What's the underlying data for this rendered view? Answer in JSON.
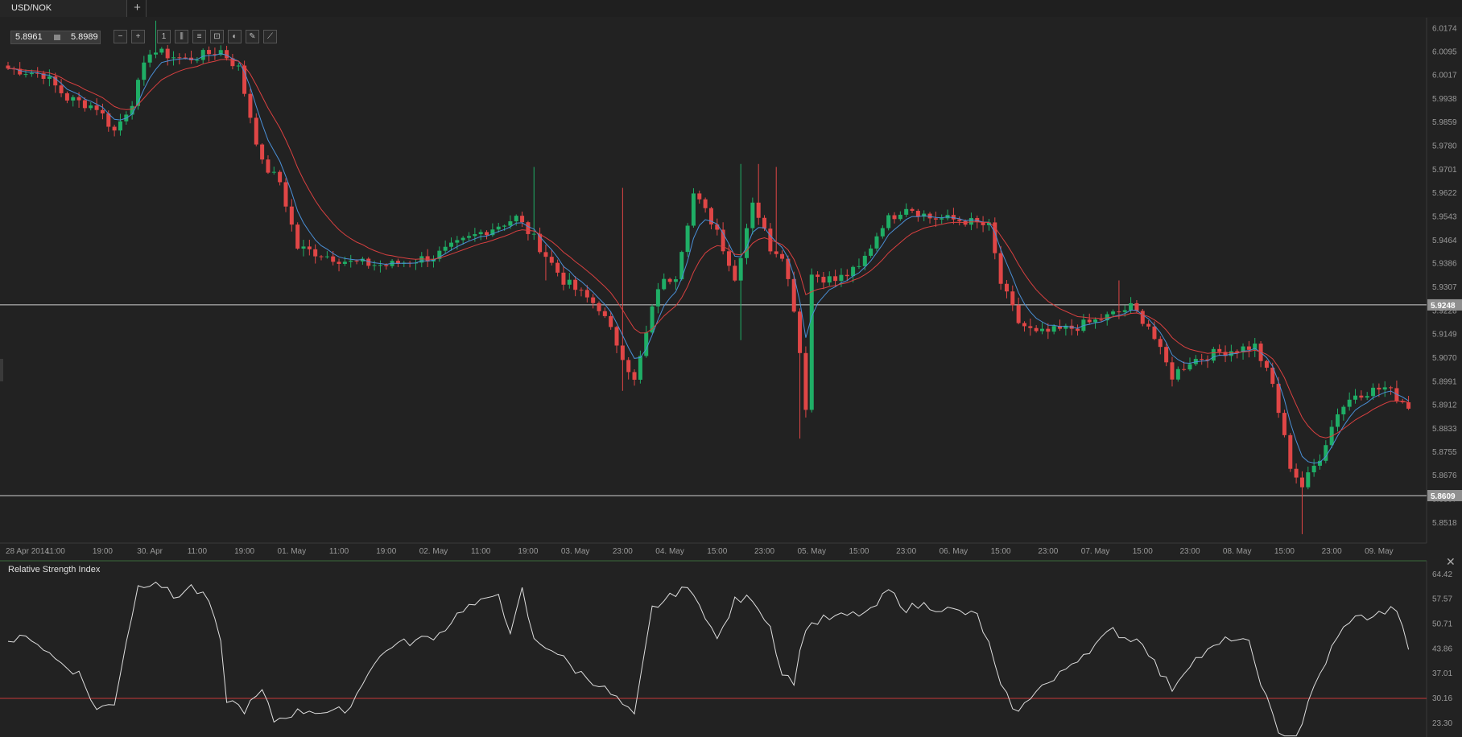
{
  "window": {
    "tab_title": "USD/NOK",
    "add_tab_label": "+"
  },
  "quote": {
    "bid": "5.8961",
    "ask": "5.8989"
  },
  "toolbar": {
    "tools": [
      {
        "name": "zoom-out-icon",
        "glyph": "−"
      },
      {
        "name": "zoom-in-icon",
        "glyph": "+"
      },
      {
        "name": "timeframe-icon",
        "glyph": "1"
      },
      {
        "name": "chart-type-icon",
        "glyph": "⫼"
      },
      {
        "name": "indicators-icon",
        "glyph": "≡"
      },
      {
        "name": "drawing-tools-icon",
        "glyph": "⊡"
      },
      {
        "name": "objects-icon",
        "glyph": "◐"
      },
      {
        "name": "edit-icon",
        "glyph": "✎"
      },
      {
        "name": "draw-line-icon",
        "glyph": "⟋"
      }
    ]
  },
  "colors": {
    "up": "#1fae66",
    "down": "#e04646",
    "ma_fast": "#4a8fd6",
    "ma_slow": "#d94040",
    "rsi_line": "#dedede",
    "rsi_level": "#c83a3a"
  },
  "chart_data": [
    {
      "type": "candlestick",
      "symbol": "USD/NOK",
      "ylim": [
        5.845,
        6.021
      ],
      "y_ticks": [
        "6.0174",
        "6.0095",
        "6.0017",
        "5.9938",
        "5.9859",
        "5.9780",
        "5.9701",
        "5.9622",
        "5.9543",
        "5.9464",
        "5.9386",
        "5.9307",
        "5.9228",
        "5.9149",
        "5.9070",
        "5.8991",
        "5.8912",
        "5.8833",
        "5.8755",
        "5.8676",
        "5.8597",
        "5.8518"
      ],
      "horizontal_lines": [
        {
          "value": 5.9248,
          "label": "5.9248"
        },
        {
          "value": 5.8609,
          "label": "5.8609"
        }
      ],
      "x_labels": [
        {
          "i": 0,
          "label": "28 Apr 2014"
        },
        {
          "i": 8,
          "label": "11:00"
        },
        {
          "i": 16,
          "label": "19:00"
        },
        {
          "i": 24,
          "label": "30. Apr"
        },
        {
          "i": 32,
          "label": "11:00"
        },
        {
          "i": 40,
          "label": "19:00"
        },
        {
          "i": 48,
          "label": "01. May"
        },
        {
          "i": 56,
          "label": "11:00"
        },
        {
          "i": 64,
          "label": "19:00"
        },
        {
          "i": 72,
          "label": "02. May"
        },
        {
          "i": 80,
          "label": "11:00"
        },
        {
          "i": 88,
          "label": "19:00"
        },
        {
          "i": 96,
          "label": "03. May"
        },
        {
          "i": 104,
          "label": "23:00"
        },
        {
          "i": 112,
          "label": "04. May"
        },
        {
          "i": 120,
          "label": "15:00"
        },
        {
          "i": 128,
          "label": "23:00"
        },
        {
          "i": 136,
          "label": "05. May"
        },
        {
          "i": 144,
          "label": "15:00"
        },
        {
          "i": 152,
          "label": "23:00"
        },
        {
          "i": 160,
          "label": "06. May"
        },
        {
          "i": 168,
          "label": "15:00"
        },
        {
          "i": 176,
          "label": "23:00"
        },
        {
          "i": 184,
          "label": "07. May"
        },
        {
          "i": 192,
          "label": "15:00"
        },
        {
          "i": 200,
          "label": "23:00"
        },
        {
          "i": 208,
          "label": "08. May"
        },
        {
          "i": 216,
          "label": "15:00"
        },
        {
          "i": 224,
          "label": "23:00"
        },
        {
          "i": 232,
          "label": "09. May"
        }
      ],
      "anchors": [
        [
          0,
          6.004
        ],
        [
          6,
          6.002
        ],
        [
          10,
          5.994
        ],
        [
          15,
          5.991
        ],
        [
          18,
          5.983
        ],
        [
          21,
          5.993
        ],
        [
          24,
          6.01
        ],
        [
          30,
          6.007
        ],
        [
          36,
          6.01
        ],
        [
          39,
          6.004
        ],
        [
          43,
          5.972
        ],
        [
          46,
          5.966
        ],
        [
          49,
          5.944
        ],
        [
          58,
          5.939
        ],
        [
          64,
          5.938
        ],
        [
          72,
          5.941
        ],
        [
          80,
          5.949
        ],
        [
          86,
          5.954
        ],
        [
          89,
          5.947
        ],
        [
          94,
          5.933
        ],
        [
          100,
          5.924
        ],
        [
          104,
          5.908
        ],
        [
          106,
          5.899
        ],
        [
          110,
          5.931
        ],
        [
          113,
          5.935
        ],
        [
          116,
          5.962
        ],
        [
          120,
          5.95
        ],
        [
          123,
          5.933
        ],
        [
          126,
          5.96
        ],
        [
          129,
          5.944
        ],
        [
          131,
          5.942
        ],
        [
          133,
          5.924
        ],
        [
          134,
          5.909
        ],
        [
          135,
          5.891
        ],
        [
          136,
          5.935
        ],
        [
          140,
          5.933
        ],
        [
          144,
          5.937
        ],
        [
          148,
          5.952
        ],
        [
          152,
          5.958
        ],
        [
          156,
          5.954
        ],
        [
          162,
          5.953
        ],
        [
          166,
          5.951
        ],
        [
          168,
          5.932
        ],
        [
          171,
          5.919
        ],
        [
          174,
          5.915
        ],
        [
          180,
          5.917
        ],
        [
          185,
          5.92
        ],
        [
          190,
          5.924
        ],
        [
          193,
          5.918
        ],
        [
          195,
          5.909
        ],
        [
          197,
          5.901
        ],
        [
          200,
          5.906
        ],
        [
          205,
          5.909
        ],
        [
          211,
          5.911
        ],
        [
          214,
          5.898
        ],
        [
          217,
          5.871
        ],
        [
          219,
          5.864
        ],
        [
          222,
          5.874
        ],
        [
          225,
          5.889
        ],
        [
          228,
          5.895
        ],
        [
          233,
          5.897
        ],
        [
          235,
          5.894
        ],
        [
          237,
          5.891
        ]
      ],
      "spikes": [
        [
          25,
          6.02,
          null
        ],
        [
          89,
          5.971,
          null
        ],
        [
          91,
          null,
          5.933
        ],
        [
          104,
          5.964,
          5.896
        ],
        [
          124,
          5.972,
          5.913
        ],
        [
          127,
          5.972,
          null
        ],
        [
          130,
          5.971,
          null
        ],
        [
          134,
          null,
          5.88
        ],
        [
          188,
          5.933,
          null
        ],
        [
          219,
          null,
          5.848
        ]
      ],
      "indicators": [
        {
          "name": "fast-ma",
          "period": 5
        },
        {
          "name": "slow-ma",
          "period": 12
        }
      ]
    },
    {
      "type": "line",
      "title": "Relative Strength Index",
      "ylim": [
        19.5,
        67.5
      ],
      "y_ticks": [
        "64.42",
        "57.57",
        "50.71",
        "43.86",
        "37.01",
        "30.16",
        "23.30"
      ],
      "level": 30.16,
      "anchors": [
        [
          0,
          46
        ],
        [
          4,
          47
        ],
        [
          8,
          41
        ],
        [
          12,
          37
        ],
        [
          15,
          27
        ],
        [
          18,
          29
        ],
        [
          20,
          46
        ],
        [
          22,
          61
        ],
        [
          25,
          63
        ],
        [
          28,
          58
        ],
        [
          31,
          61
        ],
        [
          34,
          57
        ],
        [
          36,
          45
        ],
        [
          37,
          30
        ],
        [
          40,
          27
        ],
        [
          43,
          32
        ],
        [
          45,
          24
        ],
        [
          48,
          26
        ],
        [
          51,
          27
        ],
        [
          55,
          26
        ],
        [
          58,
          28
        ],
        [
          61,
          38
        ],
        [
          65,
          45
        ],
        [
          69,
          46
        ],
        [
          73,
          48
        ],
        [
          77,
          55
        ],
        [
          81,
          57
        ],
        [
          83,
          60
        ],
        [
          85,
          47
        ],
        [
          87,
          60
        ],
        [
          89,
          46
        ],
        [
          92,
          44
        ],
        [
          96,
          38
        ],
        [
          100,
          34
        ],
        [
          103,
          30
        ],
        [
          106,
          25
        ],
        [
          109,
          55
        ],
        [
          112,
          58
        ],
        [
          114,
          61
        ],
        [
          117,
          57
        ],
        [
          120,
          46
        ],
        [
          123,
          57
        ],
        [
          126,
          58
        ],
        [
          129,
          50
        ],
        [
          131,
          37
        ],
        [
          133,
          35
        ],
        [
          135,
          50
        ],
        [
          138,
          52
        ],
        [
          142,
          53
        ],
        [
          146,
          54
        ],
        [
          149,
          60
        ],
        [
          152,
          55
        ],
        [
          155,
          56
        ],
        [
          158,
          55
        ],
        [
          161,
          54
        ],
        [
          164,
          53
        ],
        [
          166,
          45
        ],
        [
          168,
          33
        ],
        [
          171,
          26
        ],
        [
          174,
          33
        ],
        [
          177,
          35
        ],
        [
          180,
          40
        ],
        [
          184,
          45
        ],
        [
          187,
          49
        ],
        [
          189,
          47
        ],
        [
          192,
          46
        ],
        [
          195,
          37
        ],
        [
          197,
          33
        ],
        [
          200,
          40
        ],
        [
          204,
          44
        ],
        [
          207,
          47
        ],
        [
          210,
          45
        ],
        [
          212,
          35
        ],
        [
          215,
          20
        ],
        [
          218,
          19
        ],
        [
          221,
          33
        ],
        [
          224,
          44
        ],
        [
          227,
          52
        ],
        [
          231,
          53
        ],
        [
          235,
          55
        ],
        [
          237,
          43
        ],
        [
          238,
          49
        ]
      ]
    }
  ]
}
